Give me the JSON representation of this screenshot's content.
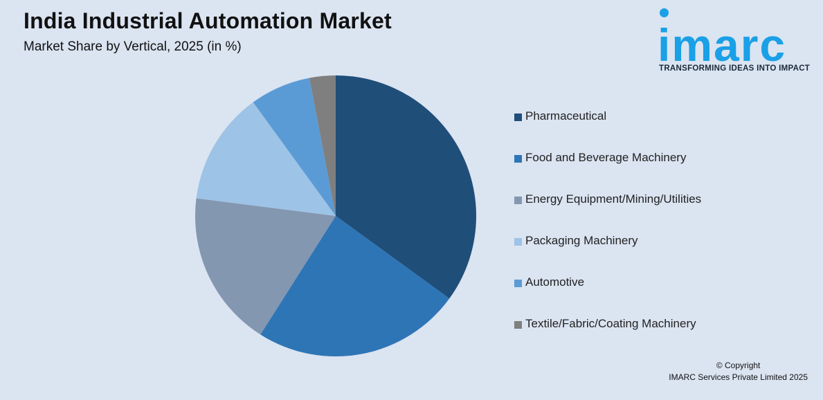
{
  "header": {
    "title": "India Industrial Automation Market",
    "subtitle": "Market Share by Vertical, 2025 (in %)"
  },
  "logo": {
    "word": "imarc",
    "tagline": "TRANSFORMING IDEAS INTO IMPACT",
    "color": "#1aa0e6"
  },
  "chart_data": {
    "type": "pie",
    "title": "India Industrial Automation Market",
    "subtitle": "Market Share by Vertical, 2025 (in %)",
    "legend_position": "right",
    "slices": [
      {
        "label": "Pharmaceutical",
        "value": 35,
        "color": "#1f4e79"
      },
      {
        "label": "Food and Beverage Machinery",
        "value": 24,
        "color": "#2e75b6"
      },
      {
        "label": "Energy Equipment/Mining/Utilities",
        "value": 18,
        "color": "#8497b0"
      },
      {
        "label": "Packaging Machinery",
        "value": 13,
        "color": "#9dc3e6"
      },
      {
        "label": "Automotive",
        "value": 7,
        "color": "#5b9bd5"
      },
      {
        "label": "Textile/Fabric/Coating Machinery",
        "value": 3,
        "color": "#7f7f7f"
      }
    ]
  },
  "footer": {
    "copyright_line1": "© Copyright",
    "copyright_line2": "IMARC Services Private Limited 2025"
  }
}
